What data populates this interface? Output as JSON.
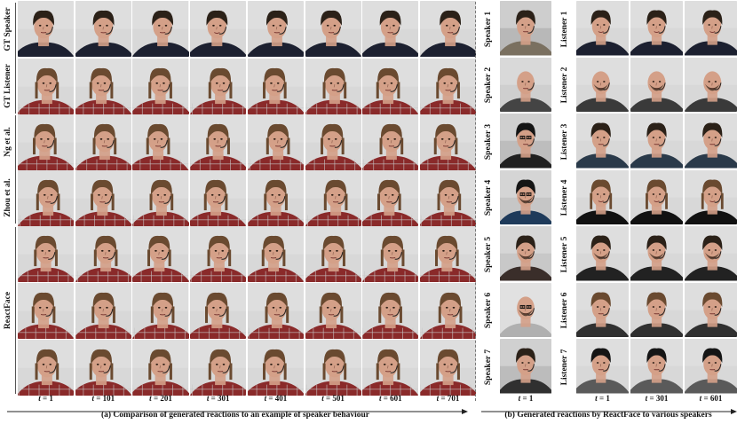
{
  "left_panel": {
    "row_labels": [
      "GT Speaker",
      "GT Listener",
      "Ng et al.",
      "Zhou et al.",
      "ReactFace"
    ],
    "time_labels": [
      {
        "var": "t",
        "text": " = 1"
      },
      {
        "var": "t",
        "text": " = 101"
      },
      {
        "var": "t",
        "text": " = 201"
      },
      {
        "var": "t",
        "text": " = 301"
      },
      {
        "var": "t",
        "text": " = 401"
      },
      {
        "var": "t",
        "text": " = 501"
      },
      {
        "var": "t",
        "text": " = 601"
      },
      {
        "var": "t",
        "text": " = 701"
      }
    ],
    "caption": "(a) Comparison of generated reactions to an example of speaker behaviour"
  },
  "right_panel": {
    "speaker_labels": [
      "Speaker 1",
      "Speaker 2",
      "Speaker 3",
      "Speaker 4",
      "Speaker 5",
      "Speaker 6",
      "Speaker 7"
    ],
    "listener_labels": [
      "Listener 1",
      "Listener 2",
      "Listener 3",
      "Listener 4",
      "Listener 5",
      "Listener 6",
      "Listener 7"
    ],
    "time_labels": [
      {
        "var": "t",
        "text": " = 1"
      },
      {
        "var": "t",
        "text": " = 301"
      },
      {
        "var": "t",
        "text": " = 601"
      }
    ],
    "caption": "(b) Generated reactions by ReactFace to various speakers"
  },
  "colors": {
    "background": "#d8d8d8",
    "skin": "#d4a088",
    "hair_dark": "#2b2118",
    "hair_brown": "#6a4a30",
    "shirt_dark": "#1c2030",
    "shirt_red": "#8a2a2a"
  }
}
